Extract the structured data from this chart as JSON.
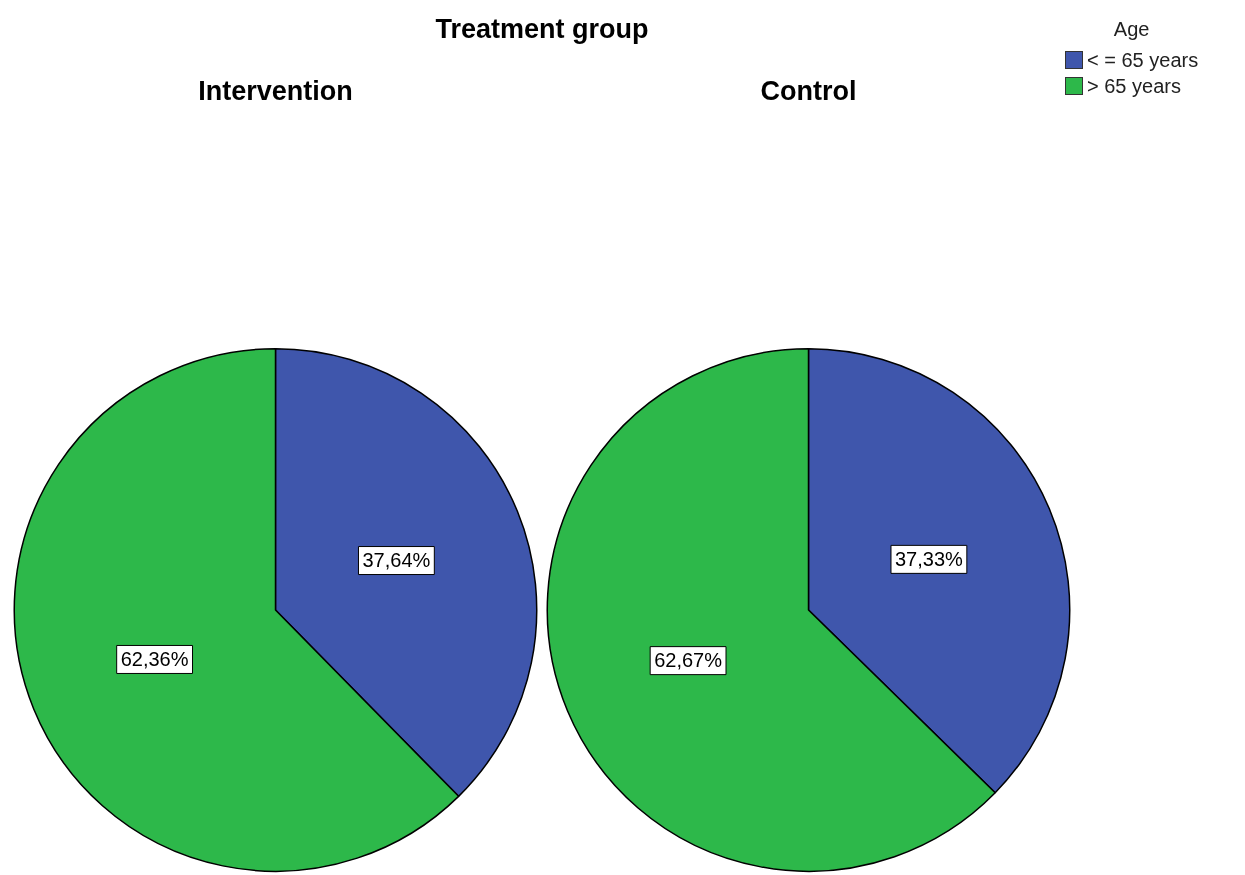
{
  "chart_data": {
    "type": "pie",
    "title": "Treatment group",
    "legend_title": "Age",
    "legend": "top right",
    "categories": [
      "< = 65 years",
      "> 65 years"
    ],
    "colors": [
      "#3f56ac",
      "#2db84a"
    ],
    "series": [
      {
        "name": "Intervention",
        "values": [
          37.64,
          62.36
        ],
        "value_labels": [
          "37,64%",
          "62,36%"
        ]
      },
      {
        "name": "Control",
        "values": [
          37.33,
          62.67
        ],
        "value_labels": [
          "37,33%",
          "62,67%"
        ]
      }
    ]
  }
}
